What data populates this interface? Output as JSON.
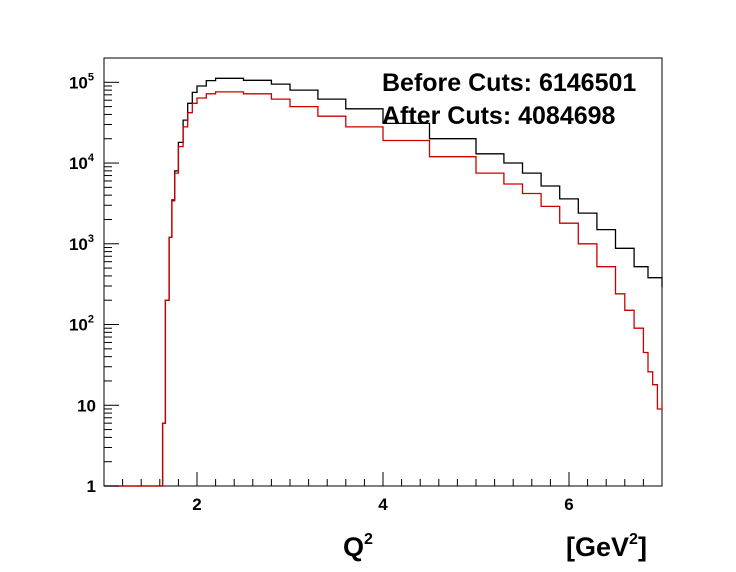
{
  "chart_data": {
    "type": "line",
    "step": true,
    "title": "",
    "xlabel": {
      "base": "Q",
      "sup": "2"
    },
    "xunit": {
      "pre": "[GeV",
      "sup": "2",
      "post": "]"
    },
    "ylabel": "",
    "xlim": [
      1,
      7
    ],
    "ylim": [
      1,
      200000
    ],
    "yscale": "log",
    "grid": false,
    "legend": "none",
    "x_ticks": [
      {
        "value": 2,
        "label": "2"
      },
      {
        "value": 4,
        "label": "4"
      },
      {
        "value": 6,
        "label": "6"
      }
    ],
    "y_ticks": [
      {
        "value": 1,
        "base": "1",
        "exp": ""
      },
      {
        "value": 10,
        "base": "10",
        "exp": ""
      },
      {
        "value": 100,
        "base": "10",
        "exp": "2"
      },
      {
        "value": 1000,
        "base": "10",
        "exp": "3"
      },
      {
        "value": 10000,
        "base": "10",
        "exp": "4"
      },
      {
        "value": 100000,
        "base": "10",
        "exp": "5"
      }
    ],
    "annotations": [
      {
        "label": "Before Cuts:",
        "value": "6146501"
      },
      {
        "label": "After Cuts:",
        "value": "4084698"
      }
    ],
    "series": [
      {
        "color": "#000000",
        "x": [
          1.0,
          1.6,
          1.63,
          1.66,
          1.7,
          1.73,
          1.76,
          1.8,
          1.85,
          1.9,
          1.95,
          2.0,
          2.1,
          2.2,
          2.3,
          2.5,
          2.8,
          3.0,
          3.3,
          3.6,
          4.0,
          4.5,
          5.0,
          5.3,
          5.5,
          5.7,
          5.9,
          6.1,
          6.3,
          6.5,
          6.7,
          6.85,
          7.0
        ],
        "y": [
          1,
          1,
          6,
          200,
          1200,
          3500,
          8000,
          18000,
          34000,
          55000,
          75000,
          90000,
          105000,
          112000,
          112000,
          106000,
          95000,
          80000,
          62000,
          47000,
          31000,
          20000,
          13000,
          10000,
          7500,
          5200,
          3600,
          2400,
          1500,
          880,
          520,
          380,
          290
        ]
      },
      {
        "color": "#cc0000",
        "x": [
          1.0,
          1.6,
          1.63,
          1.66,
          1.7,
          1.73,
          1.76,
          1.8,
          1.85,
          1.9,
          1.95,
          2.0,
          2.1,
          2.2,
          2.3,
          2.5,
          2.8,
          3.0,
          3.3,
          3.6,
          4.0,
          4.5,
          5.0,
          5.3,
          5.5,
          5.7,
          5.9,
          6.1,
          6.3,
          6.5,
          6.6,
          6.7,
          6.8,
          6.85,
          6.9,
          6.95,
          7.0
        ],
        "y": [
          1,
          1,
          6,
          200,
          1200,
          3400,
          7500,
          16000,
          28000,
          42000,
          55000,
          64000,
          72000,
          76000,
          76000,
          72000,
          62000,
          50000,
          38000,
          28000,
          19000,
          12000,
          7500,
          5500,
          4200,
          2900,
          1800,
          1000,
          520,
          240,
          150,
          90,
          45,
          26,
          18,
          9,
          11
        ]
      }
    ]
  }
}
